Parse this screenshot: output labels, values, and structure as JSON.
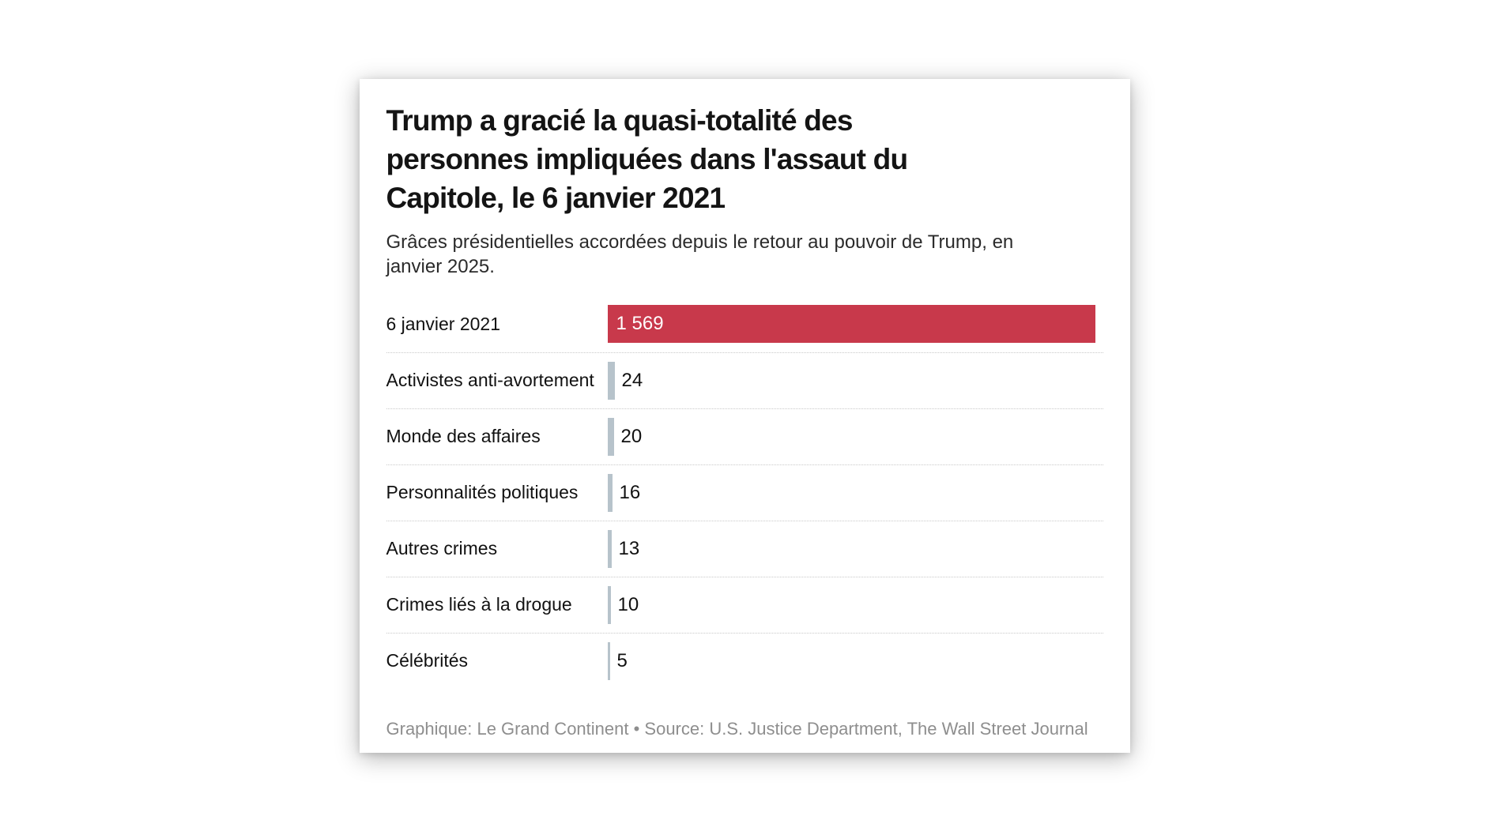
{
  "header": {
    "title": "Trump a gracié la quasi-totalité des personnes impliquées dans l'assaut du Capitole, le 6 janvier 2021",
    "subtitle": "Grâces présidentielles accordées depuis le retour au pouvoir de Trump, en janvier 2025."
  },
  "chart_data": {
    "type": "bar",
    "orientation": "horizontal",
    "title": "Trump a gracié la quasi-totalité des personnes impliquées dans l'assaut du Capitole, le 6 janvier 2021",
    "subtitle": "Grâces présidentielles accordées depuis le retour au pouvoir de Trump, en janvier 2025.",
    "categories": [
      "6 janvier 2021",
      "Activistes anti-avortement",
      "Monde des affaires",
      "Personnalités politiques",
      "Autres crimes",
      "Crimes liés à la drogue",
      "Célébrités"
    ],
    "values": [
      1569,
      24,
      20,
      16,
      13,
      10,
      5
    ],
    "value_labels": [
      "1 569",
      "24",
      "20",
      "16",
      "13",
      "10",
      "5"
    ],
    "xlim": [
      0,
      1569
    ],
    "highlight_color": "#c8394b",
    "default_bar_color": "#b7c3cb",
    "highlight_index": 0,
    "grid": "dotted-row-separators",
    "legend": "none"
  },
  "footer": {
    "credit": "Graphique: Le Grand Continent • Source: U.S. Justice Department, The Wall Street Journal"
  }
}
